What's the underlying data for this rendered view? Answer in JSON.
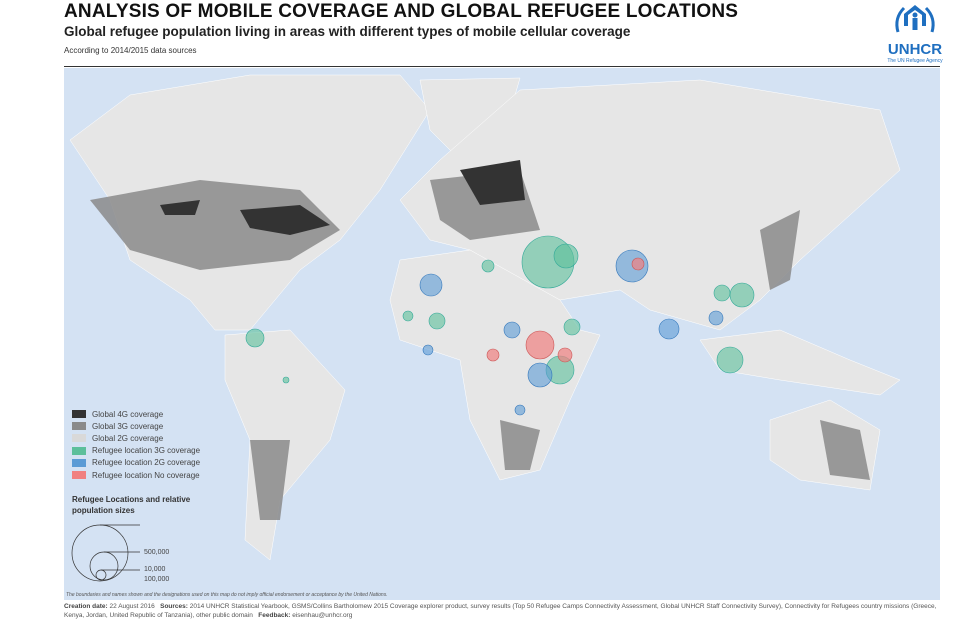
{
  "header": {
    "title": "ANALYSIS OF MOBILE COVERAGE AND GLOBAL REFUGEE LOCATIONS",
    "subtitle": "Global refugee population living in areas with different types of mobile cellular coverage",
    "note": "According to 2014/2015 data sources"
  },
  "logo": {
    "name": "UNHCR",
    "tagline": "The UN Refugee Agency"
  },
  "legend": {
    "items": [
      {
        "label": "Global 4G coverage",
        "color": "#333333"
      },
      {
        "label": "Global 3G coverage",
        "color": "#8a8a8a"
      },
      {
        "label": "Global 2G coverage",
        "color": "#d9d9d9"
      },
      {
        "label": "Refugee location 3G coverage",
        "color": "#5cbf9b"
      },
      {
        "label": "Refugee location 2G coverage",
        "color": "#5b9bd5"
      },
      {
        "label": "Refugee location No coverage",
        "color": "#f08080"
      }
    ],
    "sizes_title": "Refugee Locations and relative population sizes",
    "sizes": [
      "500,000",
      "100,000",
      "10,000"
    ]
  },
  "disclaimer": "The boundaries and names shown and the designations used on this map do not imply official endorsement or acceptance by the United Nations.",
  "footer": {
    "creation_label": "Creation date:",
    "creation_value": "22 August 2016",
    "sources_label": "Sources:",
    "sources_value": "2014 UNHCR Statistical Yearbook, GSMS/Collins Bartholomew 2015 Coverage explorer product, survey results (Top 50 Refugee Camps Connectivity Assessment, Global UNHCR Staff Connectivity Survey), Connectivity for Refugees country missions (Greece, Kenya, Jordan, United Republic of Tanzania), other public domain",
    "feedback_label": "Feedback:",
    "feedback_value": "eisenhau@unhcr.org"
  }
}
